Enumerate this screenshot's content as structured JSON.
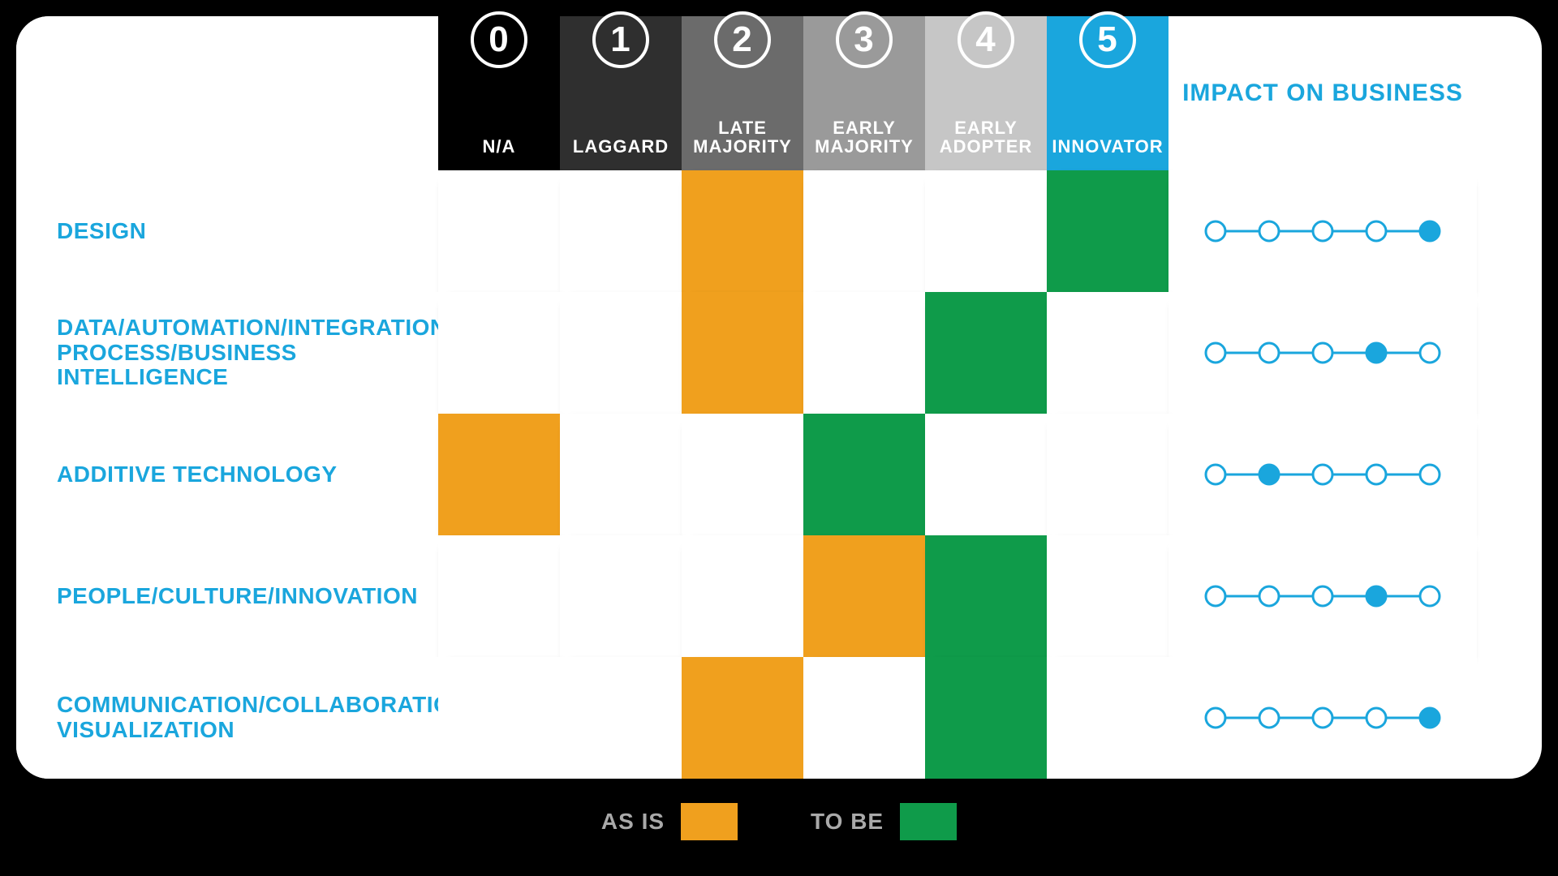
{
  "type": "maturity-matrix",
  "colors": {
    "accent": "#1aa6dd",
    "as_is": "#f0a01e",
    "to_be": "#0f9b4a",
    "legend_text": "#a9a9a9",
    "panel_bg": "#ffffff",
    "page_bg": "#000000"
  },
  "header": {
    "columns": [
      {
        "num": "0",
        "label": "N/A",
        "bg": "#000000",
        "badge_bg": "#000000"
      },
      {
        "num": "1",
        "label": "LAGGARD",
        "bg": "#2f2f2f",
        "badge_bg": "#2f2f2f"
      },
      {
        "num": "2",
        "label": "LATE MAJORITY",
        "bg": "#6b6b6b",
        "badge_bg": "#6b6b6b"
      },
      {
        "num": "3",
        "label": "EARLY MAJORITY",
        "bg": "#9a9a9a",
        "badge_bg": "#9a9a9a"
      },
      {
        "num": "4",
        "label": "EARLY ADOPTER",
        "bg": "#c6c6c6",
        "badge_bg": "#c6c6c6"
      },
      {
        "num": "5",
        "label": "INNOVATOR",
        "bg": "#1aa6dd",
        "badge_bg": "#1aa6dd"
      }
    ],
    "impact_title": "IMPACT ON BUSINESS"
  },
  "rows": [
    {
      "label": "DESIGN",
      "as_is": 2,
      "to_be": 5,
      "impact": 5
    },
    {
      "label": "DATA/AUTOMATION/INTEGRATION/ PROCESS/BUSINESS INTELLIGENCE",
      "as_is": 2,
      "to_be": 4,
      "impact": 4
    },
    {
      "label": "ADDITIVE TECHNOLOGY",
      "as_is": 0,
      "to_be": 3,
      "impact": 2
    },
    {
      "label": "PEOPLE/CULTURE/INNOVATION",
      "as_is": 3,
      "to_be": 4,
      "impact": 4
    },
    {
      "label": "COMMUNICATION/COLLABORATION/ VISUALIZATION",
      "as_is": 2,
      "to_be": 4,
      "impact": 5
    }
  ],
  "impact_scale": {
    "min": 1,
    "max": 5,
    "dot_radius": 12,
    "stroke": "#1aa6dd",
    "stroke_width": 3
  },
  "legend": {
    "items": [
      {
        "label": "AS IS",
        "color_key": "as_is"
      },
      {
        "label": "TO BE",
        "color_key": "to_be"
      }
    ]
  }
}
